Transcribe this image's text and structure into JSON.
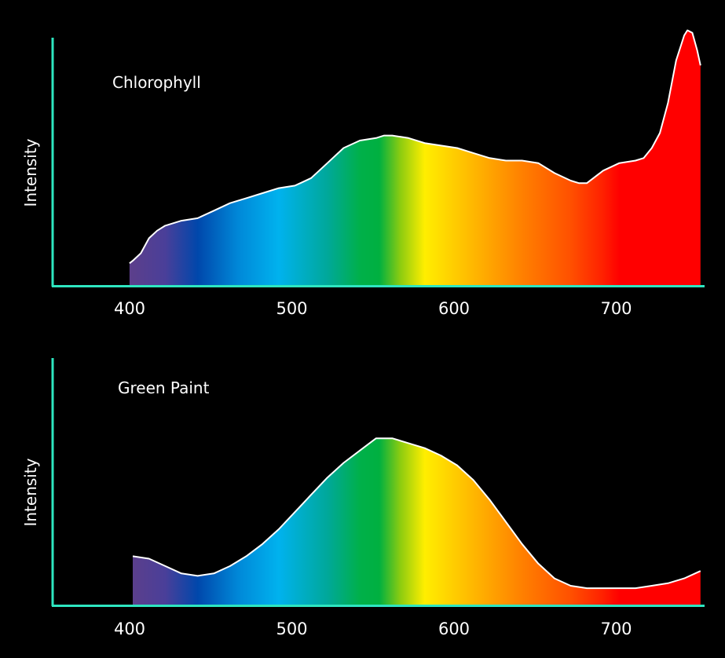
{
  "chart_data": [
    {
      "type": "area",
      "title": "Chlorophyll",
      "xlabel": "",
      "ylabel": "Intensity",
      "xlim": [
        350,
        750
      ],
      "ylim": [
        0,
        1
      ],
      "xticks": [
        400,
        500,
        600,
        700
      ],
      "x": [
        398,
        400,
        405,
        410,
        415,
        420,
        430,
        440,
        450,
        460,
        470,
        480,
        490,
        500,
        510,
        520,
        530,
        540,
        550,
        555,
        560,
        570,
        580,
        590,
        600,
        610,
        620,
        630,
        640,
        650,
        660,
        670,
        675,
        680,
        690,
        700,
        710,
        715,
        720,
        725,
        730,
        735,
        740,
        742,
        745,
        748,
        750
      ],
      "y": [
        0.09,
        0.1,
        0.13,
        0.19,
        0.22,
        0.24,
        0.26,
        0.27,
        0.3,
        0.33,
        0.35,
        0.37,
        0.39,
        0.4,
        0.43,
        0.49,
        0.55,
        0.58,
        0.59,
        0.6,
        0.6,
        0.59,
        0.57,
        0.56,
        0.55,
        0.53,
        0.51,
        0.5,
        0.5,
        0.49,
        0.45,
        0.42,
        0.41,
        0.41,
        0.46,
        0.49,
        0.5,
        0.51,
        0.55,
        0.61,
        0.73,
        0.9,
        1.0,
        1.02,
        1.01,
        0.94,
        0.88
      ],
      "grid": false,
      "legend": "none"
    },
    {
      "type": "area",
      "title": "Green Paint",
      "xlabel": "",
      "ylabel": "Intensity",
      "xlim": [
        350,
        750
      ],
      "ylim": [
        0,
        1
      ],
      "xticks": [
        400,
        500,
        600,
        700
      ],
      "x": [
        400,
        410,
        420,
        430,
        440,
        450,
        460,
        470,
        480,
        490,
        500,
        510,
        520,
        530,
        540,
        550,
        560,
        570,
        580,
        590,
        600,
        610,
        620,
        630,
        640,
        650,
        660,
        670,
        680,
        690,
        700,
        710,
        720,
        730,
        740,
        750
      ],
      "y": [
        0.2,
        0.19,
        0.16,
        0.13,
        0.12,
        0.13,
        0.16,
        0.2,
        0.25,
        0.31,
        0.38,
        0.45,
        0.52,
        0.58,
        0.63,
        0.68,
        0.68,
        0.66,
        0.64,
        0.61,
        0.57,
        0.51,
        0.43,
        0.34,
        0.25,
        0.17,
        0.11,
        0.08,
        0.07,
        0.07,
        0.07,
        0.07,
        0.08,
        0.09,
        0.11,
        0.14
      ],
      "grid": false,
      "legend": "none"
    }
  ],
  "colors": {
    "background": "#000000",
    "axis": "#2ee6c0",
    "outline": "#ffffff",
    "text": "#ffffff"
  },
  "spectrum_stops": [
    {
      "wavelength": 400,
      "color": "#5b3f8c"
    },
    {
      "wavelength": 420,
      "color": "#4a3f99"
    },
    {
      "wavelength": 440,
      "color": "#0047ab"
    },
    {
      "wavelength": 465,
      "color": "#0088d8"
    },
    {
      "wavelength": 490,
      "color": "#00b2ee"
    },
    {
      "wavelength": 520,
      "color": "#00a89a"
    },
    {
      "wavelength": 540,
      "color": "#00b04a"
    },
    {
      "wavelength": 552,
      "color": "#00b040"
    },
    {
      "wavelength": 565,
      "color": "#8ccc10"
    },
    {
      "wavelength": 580,
      "color": "#ffee00"
    },
    {
      "wavelength": 605,
      "color": "#ffc000"
    },
    {
      "wavelength": 640,
      "color": "#ff8000"
    },
    {
      "wavelength": 670,
      "color": "#ff5000"
    },
    {
      "wavelength": 690,
      "color": "#ff2000"
    },
    {
      "wavelength": 700,
      "color": "#ff0000"
    },
    {
      "wavelength": 750,
      "color": "#ff0000"
    }
  ]
}
